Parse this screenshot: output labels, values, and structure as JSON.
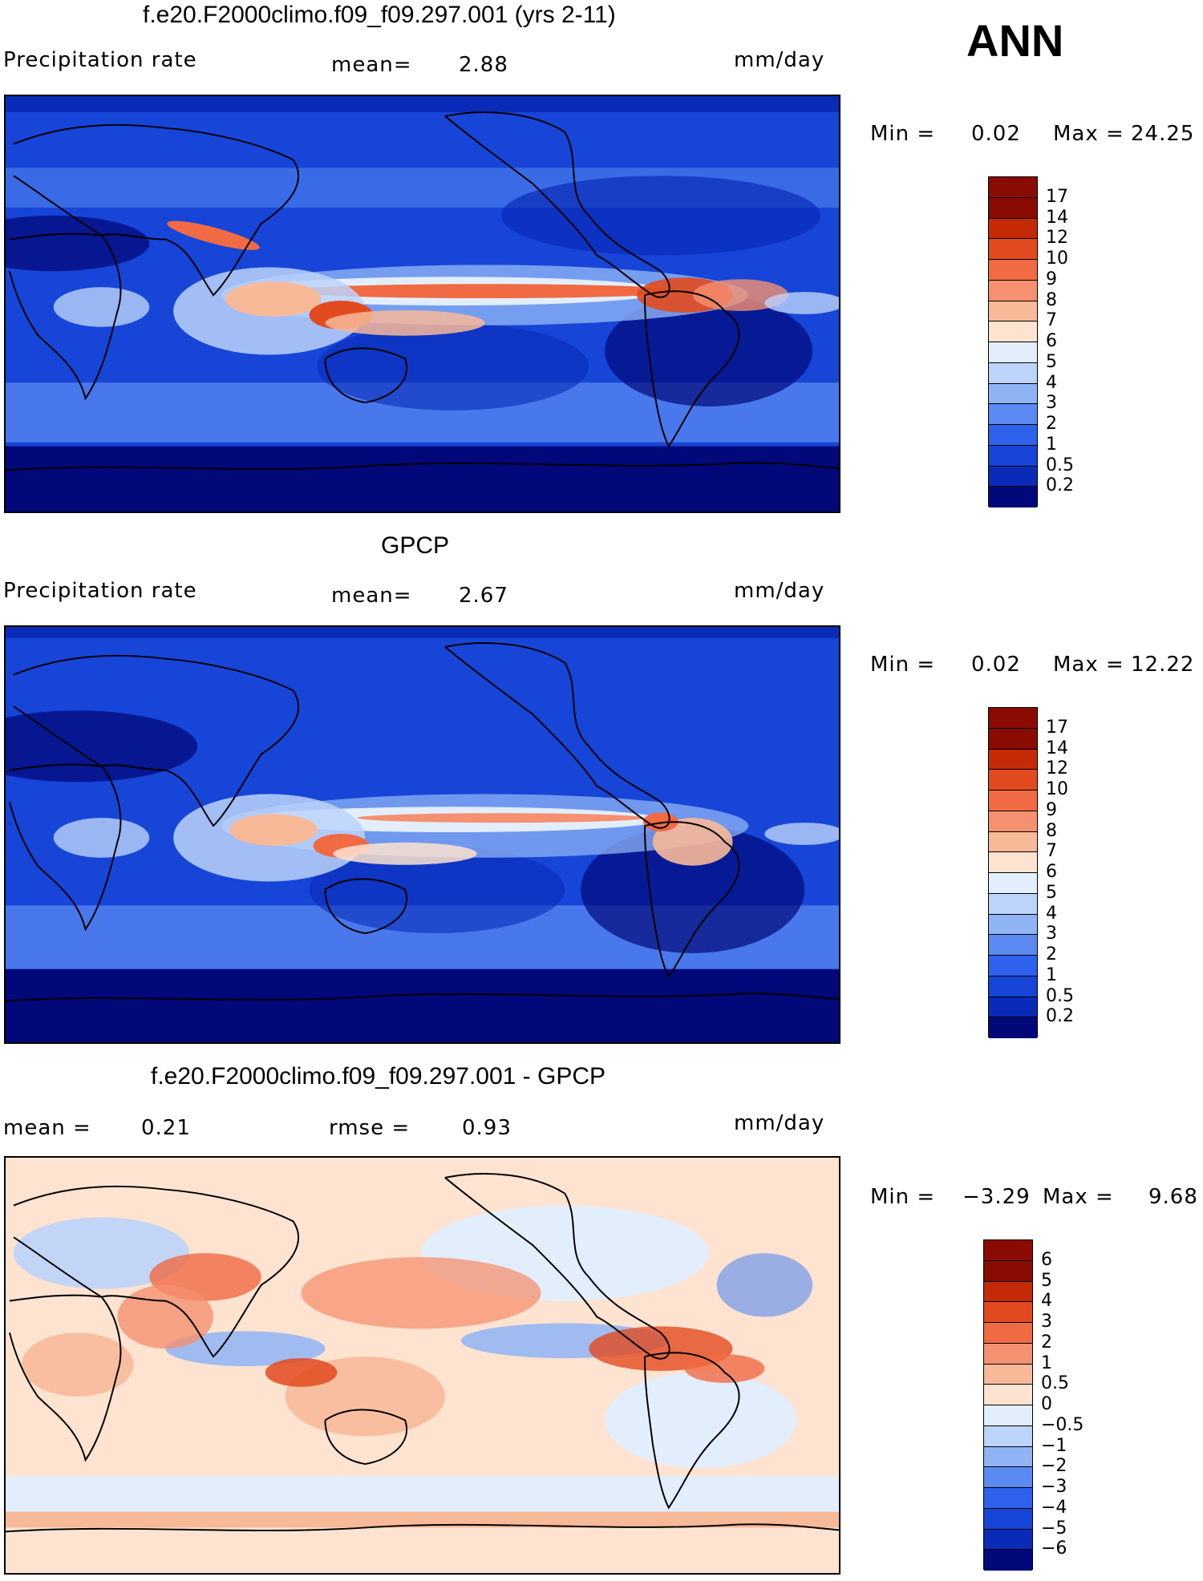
{
  "season_label": "ANN",
  "colors": {
    "precip_scale": [
      "#02087a",
      "#0a2bb8",
      "#1645d8",
      "#2e62ec",
      "#5a8af2",
      "#8fb4f6",
      "#bcd3fa",
      "#e3eefc",
      "#fde3d0",
      "#f8b999",
      "#f59070",
      "#f06a44",
      "#e24a1f",
      "#c42a06",
      "#8a0b02"
    ],
    "diff_scale": [
      "#02087a",
      "#0a2bb8",
      "#1645d8",
      "#2e62ec",
      "#5a8af2",
      "#8fb4f6",
      "#bcd3fa",
      "#e3eefc",
      "#fde3d0",
      "#f8b999",
      "#f59070",
      "#f06a44",
      "#e24a1f",
      "#c42a06",
      "#8a0b02"
    ]
  },
  "panels": [
    {
      "title": "f.e20.F2000climo.f09_f09.297.001 (yrs 2-11)",
      "left_label": "Precipitation rate",
      "mean_label": "mean=",
      "mean_value": "2.88",
      "units": "mm/day",
      "min_label": "Min =",
      "min_value": "0.02",
      "max_label": "Max =",
      "max_value": "24.25",
      "colorbar_ticks": [
        "17",
        "14",
        "12",
        "10",
        "9",
        "8",
        "7",
        "6",
        "5",
        "4",
        "3",
        "2",
        "1",
        "0.5",
        "0.2"
      ]
    },
    {
      "title": "GPCP",
      "left_label": "Precipitation rate",
      "mean_label": "mean=",
      "mean_value": "2.67",
      "units": "mm/day",
      "min_label": "Min =",
      "min_value": "0.02",
      "max_label": "Max =",
      "max_value": "12.22",
      "colorbar_ticks": [
        "17",
        "14",
        "12",
        "10",
        "9",
        "8",
        "7",
        "6",
        "5",
        "4",
        "3",
        "2",
        "1",
        "0.5",
        "0.2"
      ]
    },
    {
      "title": "f.e20.F2000climo.f09_f09.297.001 - GPCP",
      "mean_label": "mean =",
      "mean_value": "0.21",
      "rmse_label": "rmse =",
      "rmse_value": "0.93",
      "units": "mm/day",
      "min_label": "Min =",
      "min_value": "−3.29",
      "max_label": "Max =",
      "max_value": "9.68",
      "colorbar_ticks": [
        "6",
        "5",
        "4",
        "3",
        "2",
        "1",
        "0.5",
        "0",
        "−0.5",
        "−1",
        "−2",
        "−3",
        "−4",
        "−5",
        "−6"
      ]
    }
  ]
}
